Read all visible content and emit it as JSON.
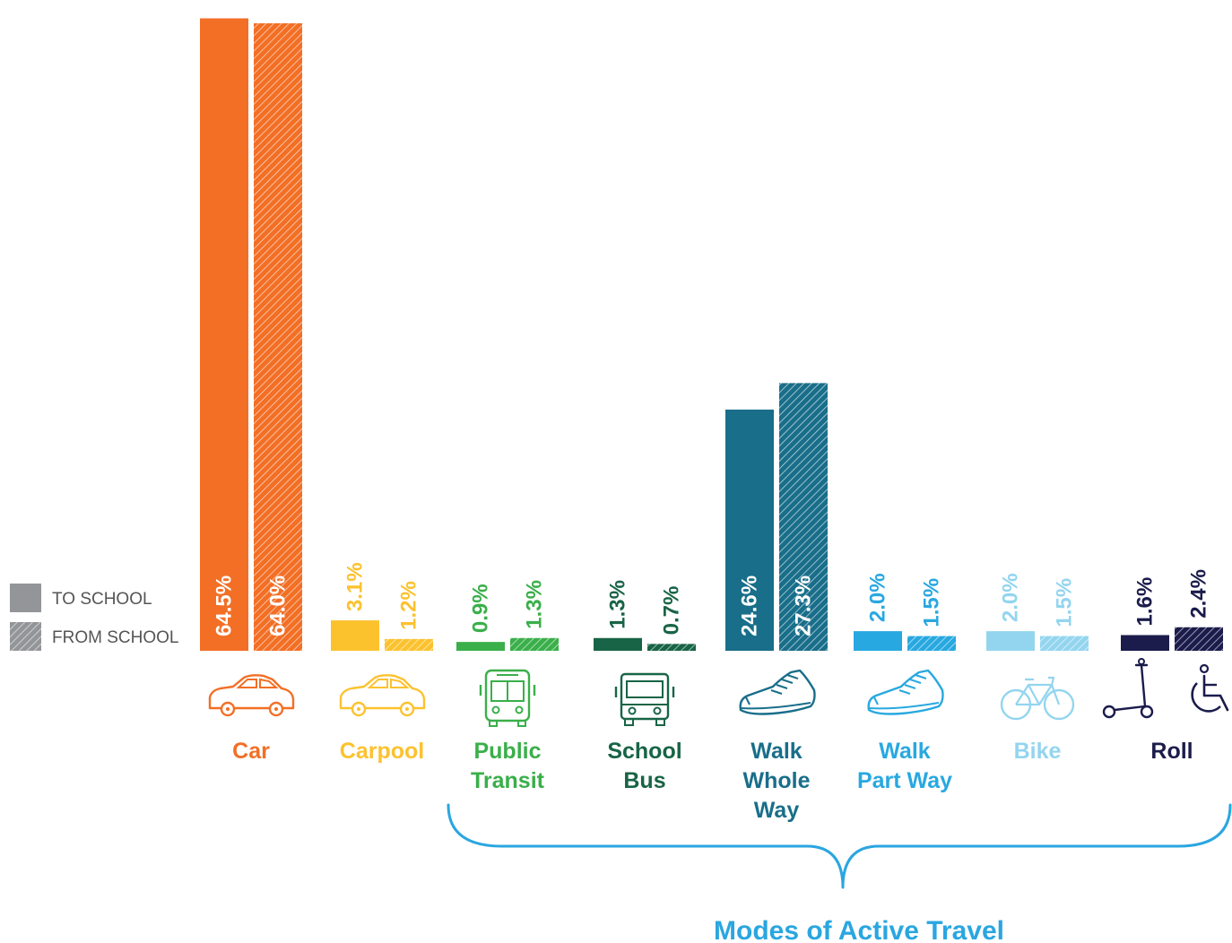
{
  "chart_data": {
    "type": "bar",
    "categories": [
      "Car",
      "Carpool",
      "Public Transit",
      "School Bus",
      "Walk Whole Way",
      "Walk Part Way",
      "Bike",
      "Roll"
    ],
    "category_lines": [
      [
        "Car"
      ],
      [
        "Carpool"
      ],
      [
        "Public",
        "Transit"
      ],
      [
        "School",
        "Bus"
      ],
      [
        "Walk",
        "Whole",
        "Way"
      ],
      [
        "Walk",
        "Part Way"
      ],
      [
        "Bike"
      ],
      [
        "Roll"
      ]
    ],
    "series": [
      {
        "name": "TO SCHOOL",
        "values": [
          64.5,
          3.1,
          0.9,
          1.3,
          24.6,
          2.0,
          2.0,
          1.6
        ],
        "pattern": "solid"
      },
      {
        "name": "FROM SCHOOL",
        "values": [
          64.0,
          1.2,
          1.3,
          0.7,
          27.3,
          1.5,
          1.5,
          2.4
        ],
        "pattern": "hatched"
      }
    ],
    "value_labels": [
      [
        "64.5%",
        "3.1%",
        "0.9%",
        "1.3%",
        "24.6%",
        "2.0%",
        "2.0%",
        "1.6%"
      ],
      [
        "64.0%",
        "1.2%",
        "1.3%",
        "0.7%",
        "27.3%",
        "1.5%",
        "1.5%",
        "2.4%"
      ]
    ],
    "colors": [
      "#f26f25",
      "#fcc22e",
      "#3aaf4a",
      "#186446",
      "#196e8a",
      "#28a8e0",
      "#93d5ef",
      "#1b1c4b"
    ],
    "icons": [
      [
        "car-icon"
      ],
      [
        "car-icon"
      ],
      [
        "bus-icon"
      ],
      [
        "school-bus-icon"
      ],
      [
        "sneaker-icon"
      ],
      [
        "sneaker-icon"
      ],
      [
        "bicycle-icon"
      ],
      [
        "scooter-icon",
        "wheelchair-icon"
      ]
    ],
    "legend_color": "#939598",
    "ylim": [
      0,
      65
    ],
    "grid": false,
    "legend": "left",
    "annotation": {
      "text": "Modes of Active Travel",
      "color": "#2aa6e0",
      "spans": [
        "Public Transit",
        "Roll"
      ]
    }
  }
}
